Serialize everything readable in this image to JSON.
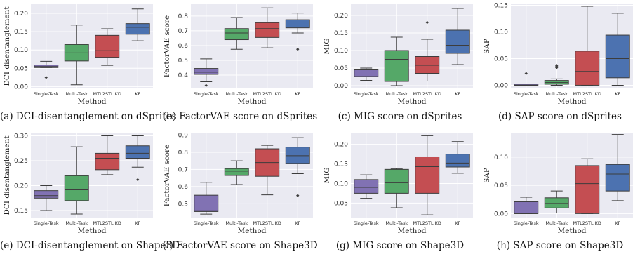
{
  "colors": {
    "plot_bg": "#eaeaf2",
    "grid": "#ffffff",
    "box_edge": "#3d3d3d",
    "series": [
      "#8172b3",
      "#55a868",
      "#c44e52",
      "#4c72b0"
    ]
  },
  "chart_data": [
    {
      "type": "box",
      "caption": "(a) DCI-disentanglement on dSprites",
      "xlabel": "Method",
      "ylabel": "DCI disentanglement",
      "categories": [
        "Single-Task",
        "Multi-Task",
        "MTL2STL KD",
        "KF"
      ],
      "ylim": [
        -0.005,
        0.225
      ],
      "yticks": [
        0.0,
        0.05,
        0.1,
        0.15,
        0.2
      ],
      "ytick_labels": [
        "0.00",
        "0.05",
        "0.10",
        "0.15",
        "0.20"
      ],
      "boxes": [
        {
          "whislo": 0.052,
          "q1": 0.052,
          "med": 0.055,
          "q3": 0.059,
          "whishi": 0.069,
          "fliers": [
            0.025
          ]
        },
        {
          "whislo": 0.005,
          "q1": 0.07,
          "med": 0.092,
          "q3": 0.115,
          "whishi": 0.168,
          "fliers": []
        },
        {
          "whislo": 0.058,
          "q1": 0.08,
          "med": 0.098,
          "q3": 0.14,
          "whishi": 0.158,
          "fliers": []
        },
        {
          "whislo": 0.125,
          "q1": 0.143,
          "med": 0.162,
          "q3": 0.172,
          "whishi": 0.212,
          "fliers": []
        }
      ]
    },
    {
      "type": "box",
      "caption": "(b) FactorVAE score on dSprites",
      "xlabel": "Method",
      "ylabel": "FactorVAE score",
      "categories": [
        "Single-Task",
        "Multi-Task",
        "MTL2STL KD",
        "KF"
      ],
      "ylim": [
        0.31,
        0.88
      ],
      "yticks": [
        0.4,
        0.5,
        0.6,
        0.7,
        0.8
      ],
      "ytick_labels": [
        "0.4",
        "0.5",
        "0.6",
        "0.7",
        "0.8"
      ],
      "boxes": [
        {
          "whislo": 0.355,
          "q1": 0.405,
          "med": 0.42,
          "q3": 0.445,
          "whishi": 0.51,
          "fliers": [
            0.33
          ]
        },
        {
          "whislo": 0.575,
          "q1": 0.64,
          "med": 0.685,
          "q3": 0.715,
          "whishi": 0.79,
          "fliers": []
        },
        {
          "whislo": 0.585,
          "q1": 0.655,
          "med": 0.715,
          "q3": 0.755,
          "whishi": 0.855,
          "fliers": []
        },
        {
          "whislo": 0.685,
          "q1": 0.72,
          "med": 0.74,
          "q3": 0.775,
          "whishi": 0.82,
          "fliers": [
            0.575
          ]
        }
      ]
    },
    {
      "type": "box",
      "caption": "(c) MIG score on dSprites",
      "xlabel": "Method",
      "ylabel": "MIG",
      "categories": [
        "Single-Task",
        "Multi-Task",
        "MTL2STL KD",
        "KF"
      ],
      "ylim": [
        -0.008,
        0.232
      ],
      "yticks": [
        0.0,
        0.05,
        0.1,
        0.15,
        0.2
      ],
      "ytick_labels": [
        "0.00",
        "0.05",
        "0.10",
        "0.15",
        "0.20"
      ],
      "boxes": [
        {
          "whislo": 0.015,
          "q1": 0.026,
          "med": 0.033,
          "q3": 0.045,
          "whishi": 0.05,
          "fliers": []
        },
        {
          "whislo": 0.0,
          "q1": 0.012,
          "med": 0.075,
          "q3": 0.1,
          "whishi": 0.138,
          "fliers": []
        },
        {
          "whislo": 0.013,
          "q1": 0.035,
          "med": 0.058,
          "q3": 0.083,
          "whishi": 0.132,
          "fliers": [
            0.18
          ]
        },
        {
          "whislo": 0.06,
          "q1": 0.092,
          "med": 0.115,
          "q3": 0.158,
          "whishi": 0.22,
          "fliers": []
        }
      ]
    },
    {
      "type": "box",
      "caption": "(d) SAP score on dSprites",
      "xlabel": "Method",
      "ylabel": "SAP",
      "categories": [
        "Single-Task",
        "Multi-Task",
        "MTL2STL KD",
        "KF"
      ],
      "ylim": [
        -0.006,
        0.152
      ],
      "yticks": [
        0.0,
        0.05,
        0.1,
        0.15
      ],
      "ytick_labels": [
        "0.00",
        "0.05",
        "0.10",
        "0.15"
      ],
      "boxes": [
        {
          "whislo": 0.0,
          "q1": 0.0,
          "med": 0.0,
          "q3": 0.002,
          "whishi": 0.002,
          "fliers": [
            0.022
          ]
        },
        {
          "whislo": 0.0,
          "q1": 0.002,
          "med": 0.005,
          "q3": 0.009,
          "whishi": 0.012,
          "fliers": [
            0.033,
            0.035,
            0.037
          ]
        },
        {
          "whislo": 0.0,
          "q1": 0.0,
          "med": 0.026,
          "q3": 0.064,
          "whishi": 0.148,
          "fliers": []
        },
        {
          "whislo": 0.0,
          "q1": 0.014,
          "med": 0.05,
          "q3": 0.094,
          "whishi": 0.135,
          "fliers": []
        }
      ]
    },
    {
      "type": "box",
      "caption": "(e) DCI-disentanglement on Shape3D",
      "xlabel": "Method",
      "ylabel": "DCI disentanglement",
      "categories": [
        "Single-Task",
        "Multi-Task",
        "MTL2STL KD",
        "KF"
      ],
      "ylim": [
        0.136,
        0.305
      ],
      "yticks": [
        0.15,
        0.2,
        0.25,
        0.3
      ],
      "ytick_labels": [
        "0.15",
        "0.20",
        "0.25",
        "0.30"
      ],
      "boxes": [
        {
          "whislo": 0.15,
          "q1": 0.175,
          "med": 0.18,
          "q3": 0.19,
          "whishi": 0.2,
          "fliers": []
        },
        {
          "whislo": 0.143,
          "q1": 0.17,
          "med": 0.193,
          "q3": 0.22,
          "whishi": 0.278,
          "fliers": []
        },
        {
          "whislo": 0.222,
          "q1": 0.232,
          "med": 0.255,
          "q3": 0.265,
          "whishi": 0.3,
          "fliers": []
        },
        {
          "whislo": 0.237,
          "q1": 0.255,
          "med": 0.265,
          "q3": 0.28,
          "whishi": 0.3,
          "fliers": [
            0.212
          ]
        }
      ]
    },
    {
      "type": "box",
      "caption": "(f) FactorVAE score on Shape3D",
      "xlabel": "Method",
      "ylabel": "FactorVAE score",
      "categories": [
        "Single-Task",
        "Multi-Task",
        "MTL2STL KD",
        "KF"
      ],
      "ylim": [
        0.42,
        0.91
      ],
      "yticks": [
        0.5,
        0.6,
        0.7,
        0.8,
        0.9
      ],
      "ytick_labels": [
        "0.5",
        "0.6",
        "0.7",
        "0.8",
        "0.9"
      ],
      "boxes": [
        {
          "whislo": 0.44,
          "q1": 0.455,
          "med": 0.46,
          "q3": 0.55,
          "whishi": 0.625,
          "fliers": []
        },
        {
          "whislo": 0.612,
          "q1": 0.665,
          "med": 0.69,
          "q3": 0.705,
          "whishi": 0.75,
          "fliers": []
        },
        {
          "whislo": 0.552,
          "q1": 0.66,
          "med": 0.74,
          "q3": 0.82,
          "whishi": 0.84,
          "fliers": []
        },
        {
          "whislo": 0.675,
          "q1": 0.735,
          "med": 0.78,
          "q3": 0.83,
          "whishi": 0.885,
          "fliers": [
            0.548
          ]
        }
      ]
    },
    {
      "type": "box",
      "caption": "(g) MIG score on Shape3D",
      "xlabel": "Method",
      "ylabel": "MIG",
      "categories": [
        "Single-Task",
        "Multi-Task",
        "MTL2STL KD",
        "KF"
      ],
      "ylim": [
        0.013,
        0.228
      ],
      "yticks": [
        0.05,
        0.1,
        0.15,
        0.2
      ],
      "ytick_labels": [
        "0.05",
        "0.10",
        "0.15",
        "0.20"
      ],
      "boxes": [
        {
          "whislo": 0.062,
          "q1": 0.075,
          "med": 0.09,
          "q3": 0.11,
          "whishi": 0.122,
          "fliers": []
        },
        {
          "whislo": 0.038,
          "q1": 0.075,
          "med": 0.102,
          "q3": 0.136,
          "whishi": 0.138,
          "fliers": []
        },
        {
          "whislo": 0.02,
          "q1": 0.075,
          "med": 0.143,
          "q3": 0.168,
          "whishi": 0.222,
          "fliers": []
        },
        {
          "whislo": 0.126,
          "q1": 0.142,
          "med": 0.152,
          "q3": 0.175,
          "whishi": 0.207,
          "fliers": []
        }
      ]
    },
    {
      "type": "box",
      "caption": "(h) SAP score on Shape3D",
      "xlabel": "Method",
      "ylabel": "SAP",
      "categories": [
        "Single-Task",
        "Multi-Task",
        "MTL2STL KD",
        "KF"
      ],
      "ylim": [
        -0.007,
        0.142
      ],
      "yticks": [
        0.0,
        0.05,
        0.1
      ],
      "ytick_labels": [
        "0.00",
        "0.05",
        "0.10"
      ],
      "boxes": [
        {
          "whislo": 0.0,
          "q1": 0.0,
          "med": 0.0,
          "q3": 0.021,
          "whishi": 0.029,
          "fliers": []
        },
        {
          "whislo": 0.001,
          "q1": 0.01,
          "med": 0.018,
          "q3": 0.028,
          "whishi": 0.04,
          "fliers": []
        },
        {
          "whislo": 0.0,
          "q1": 0.0,
          "med": 0.053,
          "q3": 0.085,
          "whishi": 0.097,
          "fliers": []
        },
        {
          "whislo": 0.023,
          "q1": 0.04,
          "med": 0.07,
          "q3": 0.087,
          "whishi": 0.14,
          "fliers": []
        }
      ]
    }
  ]
}
